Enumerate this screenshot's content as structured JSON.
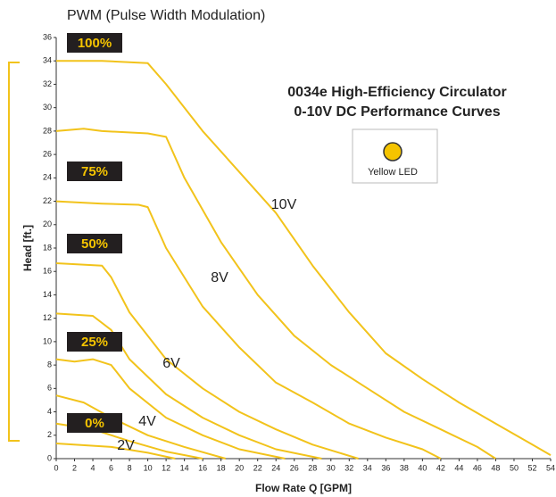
{
  "chart_data": {
    "type": "line",
    "title": "0034e High-Efficiency Circulator",
    "subtitle": "0-10V DC Performance Curves",
    "header": "PWM (Pulse Width Modulation)",
    "x_label": "Flow Rate Q [GPM]",
    "y_label": "Head [ft.]",
    "legend_label": "Yellow LED",
    "pwm_levels": [
      "100%",
      "75%",
      "50%",
      "25%",
      "0%"
    ],
    "annotations": [
      "10V",
      "8V",
      "6V",
      "4V",
      "2V"
    ],
    "series": [
      {
        "color": "#f2c31b",
        "x": [
          0,
          5,
          10,
          12,
          16,
          20,
          24,
          28,
          32,
          36,
          40,
          44,
          48,
          52,
          54
        ],
        "values": [
          34,
          34,
          33.8,
          32,
          28,
          24.5,
          21,
          16.5,
          12.5,
          9,
          6.8,
          4.8,
          3,
          1.2,
          0.3
        ]
      },
      {
        "color": "#f2c31b",
        "x": [
          0,
          3,
          5,
          10,
          12,
          14,
          18,
          22,
          26,
          30,
          34,
          38,
          42,
          46,
          48
        ],
        "values": [
          28,
          28.2,
          28,
          27.8,
          27.5,
          24,
          18.5,
          14,
          10.5,
          8,
          6,
          4,
          2.5,
          1,
          0
        ]
      },
      {
        "color": "#f2c31b",
        "x": [
          0,
          5,
          9,
          10,
          12,
          16,
          20,
          24,
          28,
          32,
          36,
          40,
          42
        ],
        "values": [
          22,
          21.8,
          21.7,
          21.5,
          18,
          13,
          9.5,
          6.5,
          4.8,
          3,
          1.8,
          0.8,
          0
        ]
      },
      {
        "color": "#f2c31b",
        "x": [
          0,
          5,
          6,
          8,
          12,
          16,
          20,
          24,
          28,
          33
        ],
        "values": [
          16.7,
          16.5,
          15.5,
          12.5,
          8.5,
          6,
          4,
          2.5,
          1.2,
          0
        ]
      },
      {
        "color": "#f2c31b",
        "x": [
          0,
          4,
          6,
          8,
          12,
          16,
          20,
          24,
          29
        ],
        "values": [
          12.4,
          12.2,
          11,
          8.5,
          5.5,
          3.5,
          2,
          0.8,
          0
        ]
      },
      {
        "color": "#f2c31b",
        "x": [
          0,
          2,
          4,
          6,
          8,
          12,
          16,
          20,
          25
        ],
        "values": [
          8.5,
          8.3,
          8.5,
          8,
          6,
          3.5,
          2,
          0.8,
          0
        ]
      },
      {
        "color": "#f2c31b",
        "x": [
          0,
          3,
          6,
          10,
          14,
          18.5
        ],
        "values": [
          5.4,
          4.8,
          3.5,
          2,
          1,
          0
        ]
      },
      {
        "color": "#f2c31b",
        "x": [
          0,
          4,
          8,
          12,
          16
        ],
        "values": [
          3,
          2.5,
          1.5,
          0.6,
          0
        ]
      },
      {
        "color": "#f2c31b",
        "x": [
          0,
          6,
          10,
          13
        ],
        "values": [
          1.3,
          1,
          0.5,
          0
        ]
      }
    ],
    "xlim": [
      0,
      54
    ],
    "ylim": [
      0,
      36
    ],
    "xticks": [
      0,
      2,
      4,
      6,
      8,
      10,
      12,
      14,
      16,
      18,
      20,
      22,
      24,
      26,
      28,
      30,
      32,
      34,
      36,
      38,
      40,
      42,
      44,
      46,
      48,
      50,
      52,
      54
    ],
    "yticks": [
      0,
      2,
      4,
      6,
      8,
      10,
      12,
      14,
      16,
      18,
      20,
      22,
      24,
      26,
      28,
      30,
      32,
      34,
      36
    ],
    "grid": false
  }
}
